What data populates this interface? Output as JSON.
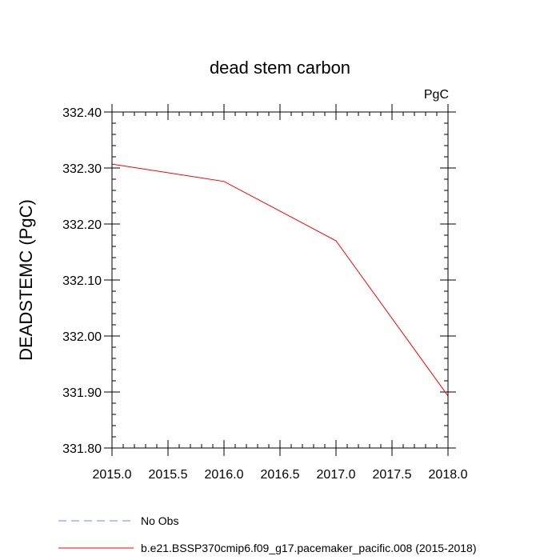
{
  "chart_data": {
    "type": "line",
    "title": "dead stem carbon",
    "units": "PgC",
    "ylabel": "DEADSTEMC  (PgC)",
    "xlabel": "",
    "xlim": [
      2015.0,
      2018.0
    ],
    "ylim": [
      331.8,
      332.4
    ],
    "xticks": [
      "2015.0",
      "2015.5",
      "2016.0",
      "2016.5",
      "2017.0",
      "2017.5",
      "2018.0"
    ],
    "yticks": [
      "331.80",
      "331.90",
      "332.00",
      "332.10",
      "332.20",
      "332.30",
      "332.40"
    ],
    "grid": false,
    "legend_position": "bottom",
    "series": [
      {
        "name": "No Obs",
        "color": "#8080ff",
        "dashed": true,
        "x": [],
        "y": []
      },
      {
        "name": "b.e21.BSSP370cmip6.f09_g17.pacemaker_pacific.008 (2015-2018)",
        "color": "#ff0000",
        "dashed": false,
        "x": [
          2015.0,
          2016.0,
          2017.0,
          2018.0
        ],
        "y": [
          332.307,
          332.276,
          332.17,
          331.893
        ]
      }
    ]
  }
}
